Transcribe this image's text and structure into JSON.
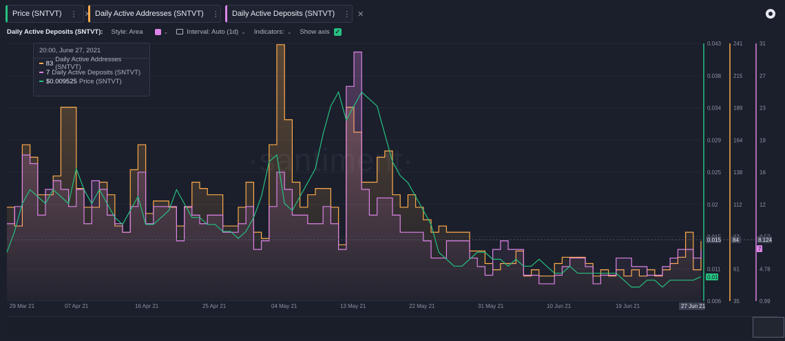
{
  "tabs": [
    {
      "label": "Price (SNTVT)",
      "color": "#26c281"
    },
    {
      "label": "Daily Active Addresses (SNTVT)",
      "color": "#ffad4d"
    },
    {
      "label": "Daily Active Deposits (SNTVT)",
      "color": "#de84e8"
    }
  ],
  "toolbar": {
    "title": "Daily Active Deposits (SNTVT):",
    "style": "Style: Area",
    "interval": "Interval: Auto (1d)",
    "indicators": "Indicators:",
    "show_axis": "Show axis"
  },
  "tooltip": {
    "date": "20:00, June 27, 2021",
    "rows": [
      {
        "value": "83",
        "label": "Daily Active Addresses (SNTVT)",
        "color": "#ffad4d"
      },
      {
        "value": "7",
        "label": "Daily Active Deposits (SNTVT)",
        "color": "#de84e8"
      },
      {
        "value": "$0.009525",
        "label": "Price (SNTVT)",
        "color": "#26c281"
      }
    ]
  },
  "watermark": "·santiment·",
  "chart_data": {
    "type": "line",
    "x_tick_labels": [
      "29 Mar 21",
      "07 Apr 21",
      "16 Apr 21",
      "25 Apr 21",
      "04 May 21",
      "13 May 21",
      "22 May 21",
      "31 May 21",
      "10 Jun 21",
      "19 Jun 21",
      "27 Jun 21"
    ],
    "hover_date_label": "27 Jun 21",
    "x": [
      "2021-03-29",
      "2021-03-30",
      "2021-03-31",
      "2021-04-01",
      "2021-04-02",
      "2021-04-03",
      "2021-04-04",
      "2021-04-05",
      "2021-04-06",
      "2021-04-07",
      "2021-04-08",
      "2021-04-09",
      "2021-04-10",
      "2021-04-11",
      "2021-04-12",
      "2021-04-13",
      "2021-04-14",
      "2021-04-15",
      "2021-04-16",
      "2021-04-17",
      "2021-04-18",
      "2021-04-19",
      "2021-04-20",
      "2021-04-21",
      "2021-04-22",
      "2021-04-23",
      "2021-04-24",
      "2021-04-25",
      "2021-04-26",
      "2021-04-27",
      "2021-04-28",
      "2021-04-29",
      "2021-04-30",
      "2021-05-01",
      "2021-05-02",
      "2021-05-03",
      "2021-05-04",
      "2021-05-05",
      "2021-05-06",
      "2021-05-07",
      "2021-05-08",
      "2021-05-09",
      "2021-05-10",
      "2021-05-11",
      "2021-05-12",
      "2021-05-13",
      "2021-05-14",
      "2021-05-15",
      "2021-05-16",
      "2021-05-17",
      "2021-05-18",
      "2021-05-19",
      "2021-05-20",
      "2021-05-21",
      "2021-05-22",
      "2021-05-23",
      "2021-05-24",
      "2021-05-25",
      "2021-05-26",
      "2021-05-27",
      "2021-05-28",
      "2021-05-29",
      "2021-05-30",
      "2021-05-31",
      "2021-06-01",
      "2021-06-02",
      "2021-06-03",
      "2021-06-04",
      "2021-06-05",
      "2021-06-06",
      "2021-06-07",
      "2021-06-08",
      "2021-06-09",
      "2021-06-10",
      "2021-06-11",
      "2021-06-12",
      "2021-06-13",
      "2021-06-14",
      "2021-06-15",
      "2021-06-16",
      "2021-06-17",
      "2021-06-18",
      "2021-06-19",
      "2021-06-20",
      "2021-06-21",
      "2021-06-22",
      "2021-06-23",
      "2021-06-24",
      "2021-06-25",
      "2021-06-26",
      "2021-06-27"
    ],
    "series": [
      {
        "name": "Daily Active Addresses (SNTVT)",
        "color": "#ffad4d",
        "axis": "right-2",
        "values": [
          110,
          95,
          160,
          150,
          120,
          120,
          135,
          190,
          190,
          125,
          110,
          110,
          130,
          120,
          95,
          90,
          140,
          160,
          105,
          115,
          115,
          110,
          95,
          110,
          130,
          125,
          120,
          120,
          95,
          95,
          110,
          130,
          90,
          85,
          160,
          240,
          180,
          130,
          110,
          120,
          125,
          125,
          110,
          80,
          190,
          170,
          130,
          130,
          150,
          155,
          120,
          110,
          120,
          110,
          100,
          90,
          95,
          90,
          90,
          90,
          75,
          75,
          65,
          60,
          65,
          65,
          75,
          55,
          60,
          55,
          55,
          65,
          70,
          70,
          70,
          65,
          55,
          60,
          55,
          60,
          55,
          60,
          55,
          60,
          55,
          60,
          65,
          70,
          90,
          60,
          83
        ],
        "hover_value": "84"
      },
      {
        "name": "Daily Active Deposits (SNTVT)",
        "color": "#de84e8",
        "axis": "right-3",
        "values": [
          10,
          12,
          18,
          17,
          11,
          14,
          15,
          14,
          12,
          14,
          10,
          15,
          14,
          11,
          10,
          9,
          12,
          16,
          10,
          12,
          12,
          12,
          8,
          12,
          11,
          10,
          11,
          11,
          9,
          9,
          10,
          12,
          7,
          8,
          12,
          16,
          14,
          11,
          11,
          10,
          10,
          12,
          10,
          7,
          26,
          30,
          14,
          11,
          13,
          13,
          11,
          9,
          9,
          9,
          8,
          6,
          6,
          8,
          8,
          8,
          6,
          5,
          4,
          7,
          8,
          7,
          7,
          4,
          4,
          3,
          3,
          4,
          5,
          6,
          6,
          5,
          3,
          4,
          4,
          6,
          6,
          5,
          5,
          4,
          4,
          5,
          6,
          7,
          7,
          6,
          7
        ],
        "hover_value": "8.124"
      },
      {
        "name": "Price (SNTVT)",
        "color": "#26c281",
        "axis": "right-1",
        "values": [
          0.013,
          0.016,
          0.02,
          0.022,
          0.021,
          0.02,
          0.022,
          0.021,
          0.02,
          0.025,
          0.022,
          0.02,
          0.022,
          0.02,
          0.018,
          0.017,
          0.019,
          0.021,
          0.017,
          0.017,
          0.018,
          0.019,
          0.022,
          0.02,
          0.018,
          0.018,
          0.017,
          0.017,
          0.016,
          0.016,
          0.015,
          0.016,
          0.018,
          0.021,
          0.026,
          0.027,
          0.02,
          0.019,
          0.021,
          0.023,
          0.025,
          0.03,
          0.034,
          0.036,
          0.032,
          0.034,
          0.036,
          0.035,
          0.034,
          0.03,
          0.026,
          0.024,
          0.023,
          0.021,
          0.019,
          0.017,
          0.013,
          0.012,
          0.011,
          0.011,
          0.012,
          0.013,
          0.013,
          0.012,
          0.012,
          0.011,
          0.012,
          0.011,
          0.011,
          0.012,
          0.011,
          0.01,
          0.01,
          0.011,
          0.01,
          0.01,
          0.01,
          0.01,
          0.01,
          0.01,
          0.009,
          0.008,
          0.008,
          0.009,
          0.009,
          0.008,
          0.009,
          0.009,
          0.009,
          0.009,
          0.0095
        ],
        "hover_value": "0.015",
        "last_value": "0.01"
      }
    ],
    "axes": {
      "right-1": {
        "ticks": [
          "0.043",
          "0.038",
          "0.034",
          "0.029",
          "0.025",
          "0.02",
          "0.015",
          "0.011",
          "0.006"
        ],
        "ylim": [
          0.006,
          0.043
        ],
        "color": "#26c281"
      },
      "right-2": {
        "ticks": [
          "241",
          "215",
          "189",
          "164",
          "138",
          "112",
          "87",
          "61",
          "35"
        ],
        "ylim": [
          35,
          241
        ],
        "color": "#ffad4d"
      },
      "right-3": {
        "ticks": [
          "31",
          "27",
          "23",
          "19",
          "16",
          "12",
          "8.57",
          "4.78",
          "0.99"
        ],
        "ylim": [
          0.99,
          31
        ],
        "color": "#de84e8",
        "last_value": "7"
      }
    }
  }
}
